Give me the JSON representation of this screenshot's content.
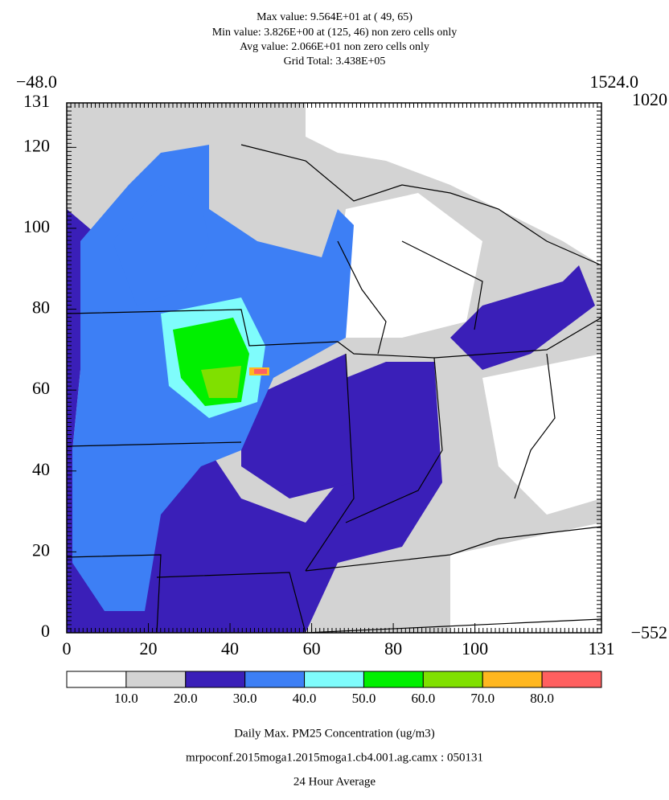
{
  "header": {
    "lines": [
      "Max value:  9.564E+01 at ( 49, 65)",
      "Min value:  3.826E+00 at (125, 46) non zero cells only",
      "Avg value:  2.066E+01 non zero cells only",
      "Grid Total:  3.438E+05"
    ]
  },
  "corners": {
    "top_left": "−48.0",
    "top_right": "1524.0",
    "right_top": "1020",
    "right_bottom": "−552"
  },
  "x_axis": {
    "lim": [
      0,
      131
    ],
    "ticks": [
      0,
      20,
      40,
      60,
      80,
      100,
      131
    ]
  },
  "y_axis": {
    "lim": [
      0,
      131
    ],
    "ticks": [
      0,
      20,
      40,
      60,
      80,
      100,
      120,
      131
    ]
  },
  "colorbar": {
    "colors": [
      "#ffffff",
      "#d3d3d3",
      "#3a1fb8",
      "#3d7ff5",
      "#7ffcfc",
      "#00f000",
      "#80e000",
      "#ffb71f",
      "#ff6060"
    ],
    "labels": [
      "10.0",
      "20.0",
      "30.0",
      "40.0",
      "50.0",
      "60.0",
      "70.0",
      "80.0"
    ]
  },
  "footer": {
    "lines": [
      "Daily Max. PM25 Concentration (ug/m3)",
      "mrpoconf.2015moga1.2015moga1.cb4.001.ag.camx : 050131",
      "24 Hour Average"
    ]
  }
}
